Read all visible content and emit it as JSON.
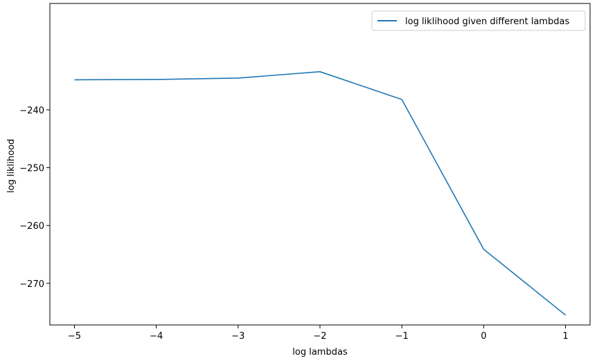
{
  "chart_data": {
    "type": "line",
    "title": "",
    "xlabel": "log lambdas",
    "ylabel": "log liklihood",
    "xlim": [
      -5.3,
      1.3
    ],
    "ylim": [
      -277.2,
      -221.6
    ],
    "xticks": [
      -5,
      -4,
      -3,
      -2,
      -1,
      0,
      1
    ],
    "yticks": [
      -270,
      -260,
      -250,
      -240
    ],
    "grid": false,
    "legend_position": "top-right",
    "series": [
      {
        "name": "log liklihood given different lambdas",
        "color": "#1f77b4",
        "x": [
          -5,
          -4,
          -3,
          -2,
          -1,
          0,
          1
        ],
        "y": [
          -234.8,
          -234.75,
          -234.5,
          -233.4,
          -238.2,
          -264.1,
          -275.5
        ]
      }
    ]
  }
}
